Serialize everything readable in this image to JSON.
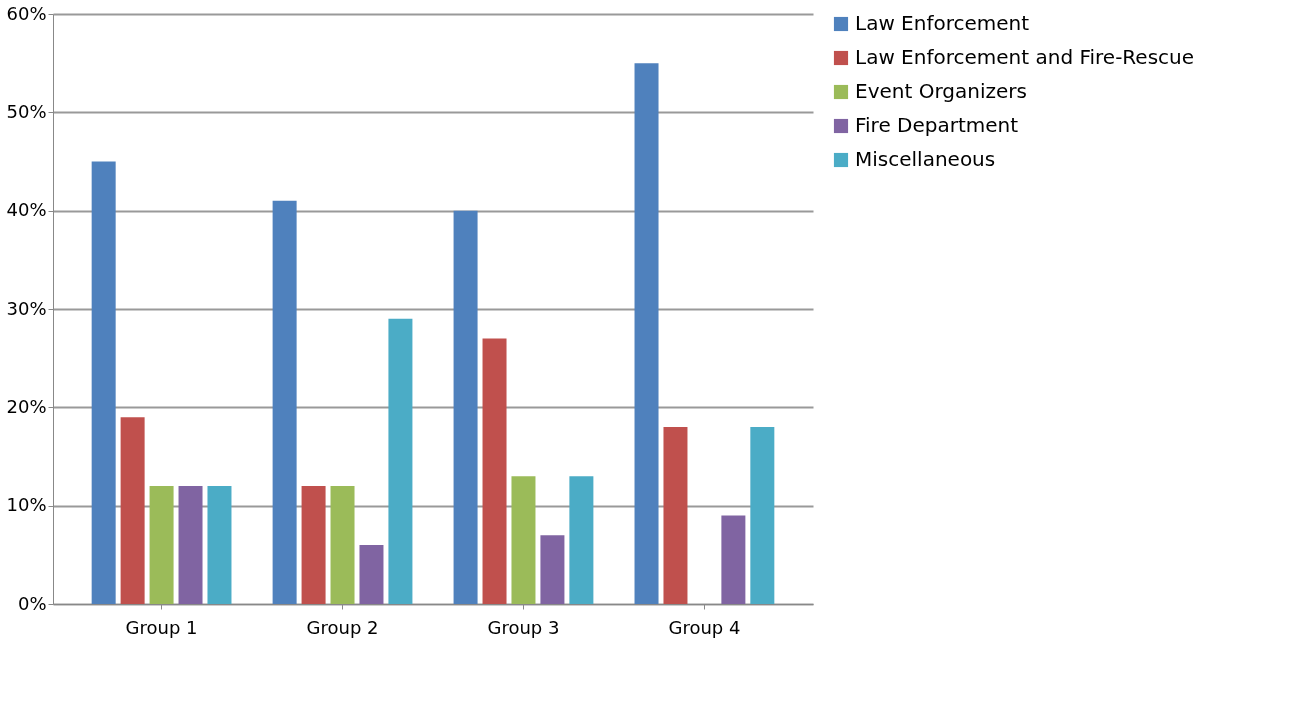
{
  "chart_data": {
    "type": "bar",
    "categories": [
      "Group 1",
      "Group 2",
      "Group 3",
      "Group 4"
    ],
    "series": [
      {
        "name": "Law Enforcement",
        "color": "#4f81bd",
        "values": [
          45,
          41,
          40,
          55
        ]
      },
      {
        "name": "Law Enforcement and Fire-Rescue",
        "color": "#c0504d",
        "values": [
          19,
          12,
          27,
          18
        ]
      },
      {
        "name": "Event Organizers",
        "color": "#9bbb59",
        "values": [
          12,
          12,
          13,
          0
        ]
      },
      {
        "name": "Fire Department",
        "color": "#8064a2",
        "values": [
          12,
          6,
          7,
          9
        ]
      },
      {
        "name": "Miscellaneous",
        "color": "#4bacc6",
        "values": [
          12,
          29,
          13,
          18
        ]
      }
    ],
    "ylim": [
      0,
      60
    ],
    "yticks": [
      {
        "value": 0,
        "label": "0%"
      },
      {
        "value": 10,
        "label": "10%"
      },
      {
        "value": 20,
        "label": "20%"
      },
      {
        "value": 30,
        "label": "30%"
      },
      {
        "value": 40,
        "label": "40%"
      },
      {
        "value": 50,
        "label": "50%"
      },
      {
        "value": 60,
        "label": "60%"
      }
    ],
    "grid": "y",
    "legend": "right"
  }
}
